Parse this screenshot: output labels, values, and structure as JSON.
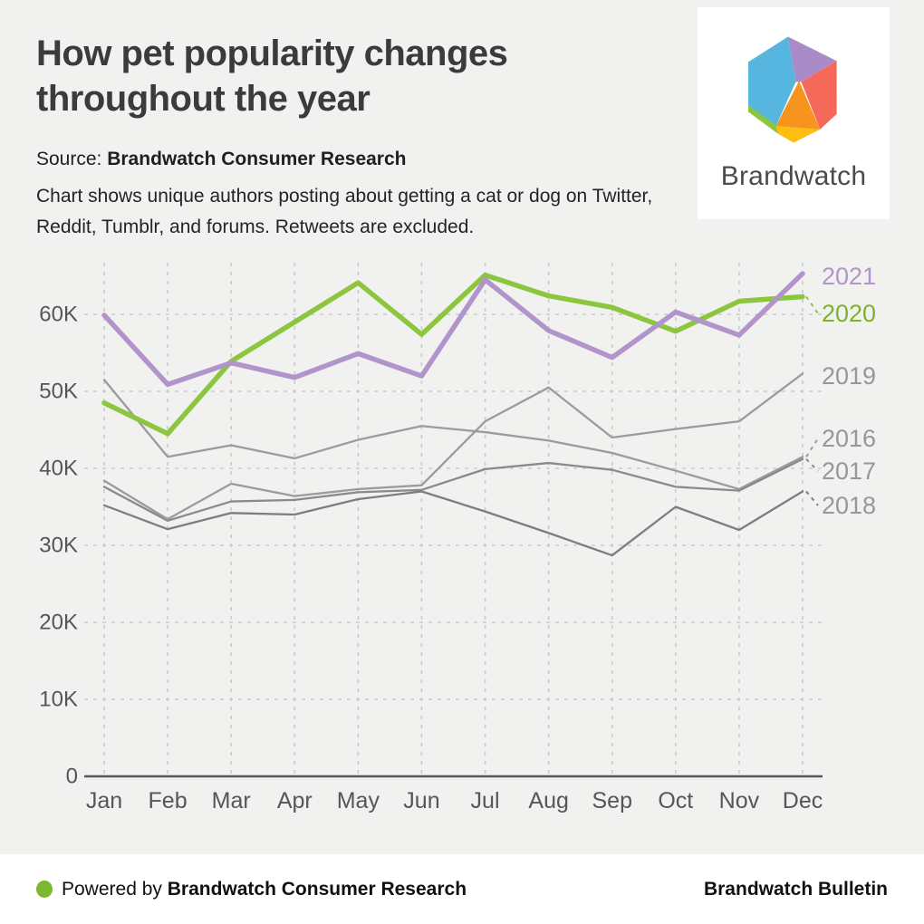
{
  "header": {
    "title": "How pet popularity changes throughout the year",
    "source_label": "Source:",
    "source_value": "Brandwatch Consumer Research",
    "description": "Chart shows unique authors posting about getting a cat or dog on Twitter, Reddit, Tumblr, and forums. Retweets are excluded.",
    "logo_text": "Brandwatch"
  },
  "brand_colors": {
    "green": "#8cc63f",
    "purple": "#b195ca",
    "logo_blue": "#56b6e0",
    "logo_purple": "#a98bc8",
    "logo_red": "#f4695a",
    "logo_orange": "#f7941e",
    "logo_yellow": "#fdbe11",
    "logo_green": "#8cc63f"
  },
  "chart_data": {
    "type": "line",
    "title": "",
    "xlabel": "",
    "ylabel": "",
    "unit": "thousands of unique authors",
    "grid": "dashed",
    "legend_position": "right of line ends",
    "ylim": [
      0,
      67
    ],
    "categories": [
      "Jan",
      "Feb",
      "Mar",
      "Apr",
      "May",
      "Jun",
      "Jul",
      "Aug",
      "Sep",
      "Oct",
      "Nov",
      "Dec"
    ],
    "y_axis": {
      "ticks": [
        {
          "label": "0",
          "v": 0
        },
        {
          "label": "10K",
          "v": 10
        },
        {
          "label": "20K",
          "v": 20
        },
        {
          "label": "30K",
          "v": 30
        },
        {
          "label": "40K",
          "v": 40
        },
        {
          "label": "50K",
          "v": 50
        },
        {
          "label": "60K",
          "v": 60
        }
      ]
    },
    "series": [
      {
        "name": "2016",
        "color": "#9b9b9b",
        "label_color": "#97979b",
        "emphasis": false,
        "values": [
          51.5,
          41.5,
          43.0,
          41.3,
          43.7,
          45.5,
          44.7,
          43.6,
          42.0,
          39.7,
          37.3,
          41.5
        ]
      },
      {
        "name": "2017",
        "color": "#8a8a8a",
        "label_color": "#97979b",
        "emphasis": false,
        "values": [
          37.6,
          33.2,
          35.7,
          35.9,
          36.9,
          37.2,
          39.9,
          40.7,
          39.8,
          37.6,
          37.1,
          41.2
        ]
      },
      {
        "name": "2018",
        "color": "#7d7d7d",
        "label_color": "#97979b",
        "emphasis": false,
        "values": [
          35.2,
          32.1,
          34.2,
          34.0,
          36.0,
          37.0,
          34.4,
          31.6,
          28.7,
          35.0,
          32.0,
          37.0
        ]
      },
      {
        "name": "2019",
        "color": "#9b9b9b",
        "label_color": "#97979b",
        "emphasis": false,
        "values": [
          38.4,
          33.4,
          38.0,
          36.4,
          37.3,
          37.8,
          46.1,
          50.5,
          44.0,
          45.1,
          46.1,
          52.3
        ]
      },
      {
        "name": "2020",
        "color": "#8cc63f",
        "label_color": "#7db32c",
        "emphasis": true,
        "values": [
          48.5,
          44.5,
          53.9,
          59.0,
          64.1,
          57.4,
          65.1,
          62.4,
          60.9,
          57.8,
          61.7,
          62.3
        ]
      },
      {
        "name": "2021",
        "color": "#b195ca",
        "label_color": "#b195ca",
        "emphasis": true,
        "values": [
          59.9,
          50.9,
          53.7,
          51.8,
          54.9,
          52.0,
          64.5,
          57.9,
          54.4,
          60.3,
          57.3,
          65.3
        ]
      }
    ]
  },
  "footer": {
    "powered_by_prefix": "Powered by",
    "powered_by_value": "Brandwatch Consumer Research",
    "right_text": "Brandwatch Bulletin",
    "bullet_color": "#7cb82f"
  }
}
